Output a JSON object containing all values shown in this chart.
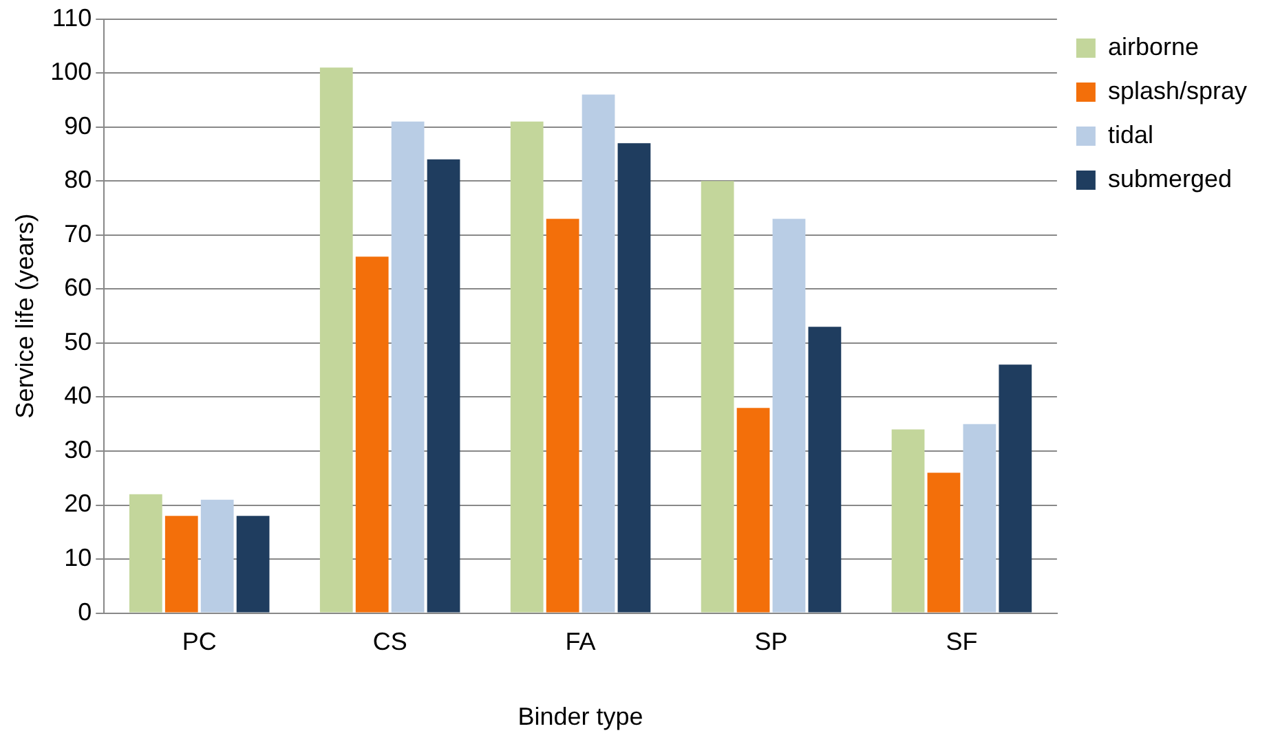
{
  "chart_data": {
    "type": "bar",
    "xlabel": "Binder type",
    "ylabel": "Service life (years)",
    "categories": [
      "PC",
      "CS",
      "FA",
      "SP",
      "SF"
    ],
    "series": [
      {
        "name": "airborne",
        "color": "#c3d69b",
        "values": [
          22,
          101,
          91,
          80,
          34
        ]
      },
      {
        "name": "splash/spray",
        "color": "#f36f0a",
        "values": [
          18,
          66,
          73,
          38,
          26
        ]
      },
      {
        "name": "tidal",
        "color": "#b9cde5",
        "values": [
          21,
          91,
          96,
          73,
          35
        ]
      },
      {
        "name": "submerged",
        "color": "#1f3d5f",
        "values": [
          18,
          84,
          87,
          53,
          46
        ]
      }
    ],
    "ylim": [
      0,
      110
    ],
    "yticks": [
      0,
      10,
      20,
      30,
      40,
      50,
      60,
      70,
      80,
      90,
      100,
      110
    ],
    "grid": "y",
    "legend": "top right"
  }
}
